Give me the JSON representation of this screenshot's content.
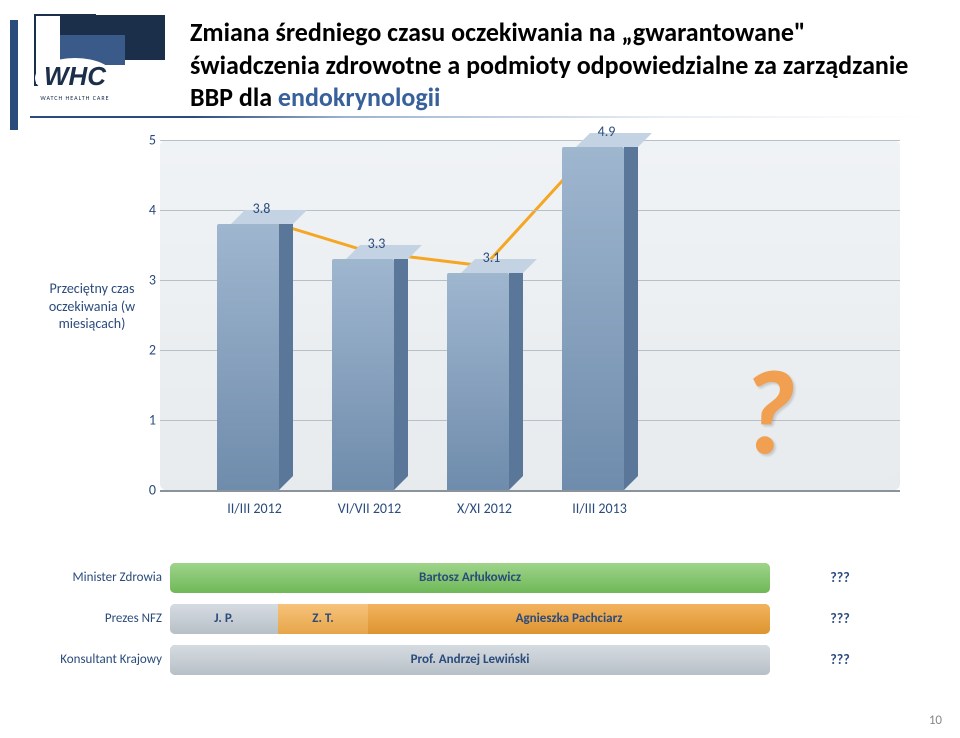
{
  "title": {
    "prefix": "Zmiana średniego czasu oczekiwania na „gwarantowane\" świadczenia zdrowotne a podmioty odpowiedzialne za zarządzanie BBP dla ",
    "highlight": "endokrynologii"
  },
  "logo": {
    "name": "whc-logo",
    "text_main": "WHC",
    "text_sub": "WATCH HEALTH CARE",
    "bg_dark": "#1b2e4a",
    "bg_mid": "#3a5a8a",
    "white": "#ffffff"
  },
  "chart": {
    "type": "bar",
    "ylabel": "Przeciętny czas oczekiwania (w miesiącach)",
    "ylim": [
      0,
      5
    ],
    "ytick_step": 1,
    "categories": [
      "II/III 2012",
      "VI/VII 2012",
      "X/XI 2012",
      "II/III 2013"
    ],
    "values": [
      3.8,
      3.3,
      3.1,
      4.9
    ],
    "bar_fill_top": "#9fb6cf",
    "bar_fill_bottom": "#6f8cac",
    "bar_side": "#5a7699",
    "bar_top": "#c4d3e3",
    "line_color": "#f5a623",
    "line_width": 3,
    "marker_color": "#f5a623",
    "marker_size": 6,
    "background_top": "#f0f3f5",
    "background_bottom": "#e7ebee",
    "grid_color": "#b8c0c7",
    "label_fontsize": 14,
    "qmark": "?",
    "qmark_color": "#f0a050"
  },
  "timeline": {
    "rows": [
      {
        "label": "Minister Zdrowia",
        "segments": [
          {
            "text": "Bartosz Arłukowicz",
            "start": 0,
            "end": 100,
            "fill_top": "#9ed48a",
            "fill_bottom": "#6fb858"
          }
        ],
        "future": "???"
      },
      {
        "label": "Prezes NFZ",
        "segments": [
          {
            "text": "J. P.",
            "start": 0,
            "end": 18,
            "fill_top": "#d5dbe1",
            "fill_bottom": "#b8c0c7"
          },
          {
            "text": "Z. T.",
            "start": 18,
            "end": 33,
            "fill_top": "#f6c27a",
            "fill_bottom": "#e7a64a"
          },
          {
            "text": "Agnieszka Pachciarz",
            "start": 33,
            "end": 100,
            "fill_top": "#f2b35e",
            "fill_bottom": "#de9530"
          }
        ],
        "future": "???"
      },
      {
        "label": "Konsultant Krajowy",
        "segments": [
          {
            "text": "Prof. Andrzej Lewiński",
            "start": 0,
            "end": 100,
            "fill_top": "#d5dbe1",
            "fill_bottom": "#b8c0c7"
          }
        ],
        "future": "???"
      }
    ]
  },
  "page_number": "10"
}
